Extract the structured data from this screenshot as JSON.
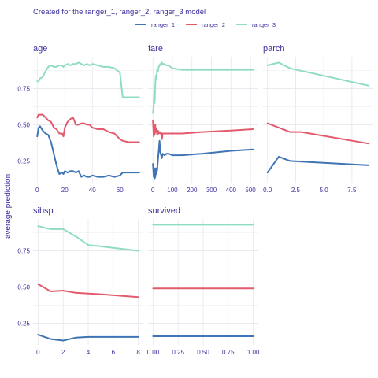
{
  "chart_data": {
    "type": "line",
    "title": "Created for the ranger_1, ranger_2, ranger_3 model",
    "ylabel": "average prediction",
    "legend_position": "top",
    "series_meta": [
      {
        "name": "ranger_1",
        "color": "#3f74b5"
      },
      {
        "name": "ranger_2",
        "color": "#e35a6c"
      },
      {
        "name": "ranger_3",
        "color": "#8fdcc3"
      }
    ],
    "ylim": [
      0.1,
      0.97
    ],
    "yticks": [
      0.25,
      0.5,
      0.75
    ],
    "ytick_labels": [
      "0.25",
      "0.50",
      "0.75"
    ],
    "panels": [
      {
        "name": "age",
        "xlim": [
          -3,
          77
        ],
        "xticks": [
          0,
          20,
          40,
          60
        ],
        "xtick_labels": [
          "0",
          "20",
          "40",
          "60"
        ],
        "series": [
          {
            "name": "ranger_1",
            "x": [
              0,
              1,
              2,
              4,
              6,
              8,
              10,
              12,
              14,
              16,
              18,
              19,
              20,
              22,
              24,
              26,
              28,
              30,
              32,
              34,
              36,
              38,
              40,
              44,
              48,
              52,
              56,
              60,
              62,
              66,
              70,
              74
            ],
            "y": [
              0.42,
              0.48,
              0.49,
              0.46,
              0.44,
              0.43,
              0.38,
              0.3,
              0.22,
              0.16,
              0.17,
              0.16,
              0.18,
              0.17,
              0.18,
              0.18,
              0.17,
              0.18,
              0.14,
              0.15,
              0.14,
              0.14,
              0.15,
              0.14,
              0.14,
              0.15,
              0.14,
              0.15,
              0.17,
              0.17,
              0.17,
              0.17
            ]
          },
          {
            "name": "ranger_2",
            "x": [
              0,
              1,
              2,
              4,
              6,
              8,
              10,
              12,
              14,
              16,
              18,
              19,
              20,
              22,
              24,
              26,
              28,
              30,
              32,
              34,
              36,
              38,
              40,
              44,
              48,
              52,
              56,
              60,
              62,
              66,
              70,
              74
            ],
            "y": [
              0.55,
              0.57,
              0.57,
              0.57,
              0.55,
              0.53,
              0.52,
              0.48,
              0.47,
              0.44,
              0.44,
              0.42,
              0.48,
              0.52,
              0.54,
              0.55,
              0.5,
              0.5,
              0.51,
              0.51,
              0.5,
              0.5,
              0.48,
              0.47,
              0.47,
              0.45,
              0.44,
              0.4,
              0.39,
              0.38,
              0.38,
              0.38
            ]
          },
          {
            "name": "ranger_3",
            "x": [
              0,
              1,
              2,
              4,
              6,
              8,
              10,
              12,
              14,
              16,
              18,
              19,
              20,
              22,
              24,
              26,
              28,
              30,
              32,
              34,
              36,
              38,
              40,
              44,
              48,
              52,
              56,
              60,
              62,
              66,
              70,
              74
            ],
            "y": [
              0.8,
              0.8,
              0.82,
              0.83,
              0.87,
              0.9,
              0.91,
              0.9,
              0.9,
              0.91,
              0.91,
              0.9,
              0.91,
              0.92,
              0.91,
              0.92,
              0.92,
              0.93,
              0.92,
              0.91,
              0.92,
              0.91,
              0.92,
              0.91,
              0.9,
              0.9,
              0.89,
              0.86,
              0.69,
              0.69,
              0.69,
              0.69
            ]
          }
        ]
      },
      {
        "name": "fare",
        "xlim": [
          -25,
          540
        ],
        "xticks": [
          0,
          100,
          200,
          300,
          400,
          500
        ],
        "xtick_labels": [
          "0",
          "100",
          "200",
          "300",
          "400",
          "500"
        ],
        "series": [
          {
            "name": "ranger_1",
            "x": [
              0,
              4,
              7,
              9,
              12,
              15,
              18,
              22,
              26,
              30,
              34,
              38,
              42,
              46,
              50,
              60,
              70,
              80,
              100,
              150,
              250,
              400,
              512
            ],
            "y": [
              0.23,
              0.14,
              0.2,
              0.13,
              0.14,
              0.2,
              0.16,
              0.19,
              0.26,
              0.32,
              0.39,
              0.31,
              0.29,
              0.27,
              0.3,
              0.29,
              0.3,
              0.3,
              0.29,
              0.29,
              0.3,
              0.32,
              0.33
            ]
          },
          {
            "name": "ranger_2",
            "x": [
              0,
              4,
              7,
              9,
              12,
              15,
              18,
              22,
              26,
              30,
              34,
              38,
              42,
              46,
              50,
              60,
              70,
              80,
              100,
              150,
              250,
              400,
              512
            ],
            "y": [
              0.53,
              0.42,
              0.49,
              0.43,
              0.5,
              0.45,
              0.47,
              0.43,
              0.46,
              0.44,
              0.45,
              0.44,
              0.45,
              0.4,
              0.44,
              0.44,
              0.44,
              0.44,
              0.44,
              0.44,
              0.45,
              0.46,
              0.47
            ]
          },
          {
            "name": "ranger_3",
            "x": [
              0,
              4,
              7,
              9,
              12,
              15,
              18,
              22,
              26,
              30,
              34,
              38,
              42,
              46,
              50,
              60,
              70,
              80,
              100,
              150,
              250,
              400,
              512
            ],
            "y": [
              0.58,
              0.63,
              0.73,
              0.65,
              0.78,
              0.84,
              0.81,
              0.88,
              0.87,
              0.9,
              0.91,
              0.92,
              0.91,
              0.93,
              0.92,
              0.92,
              0.91,
              0.91,
              0.89,
              0.88,
              0.88,
              0.88,
              0.88
            ]
          }
        ]
      },
      {
        "name": "parch",
        "xlim": [
          -0.4,
          9.4
        ],
        "xticks": [
          0,
          2.5,
          5,
          7.5
        ],
        "xtick_labels": [
          "0.0",
          "2.5",
          "5.0",
          "7.5"
        ],
        "series": [
          {
            "name": "ranger_1",
            "x": [
              0,
              1,
              2,
              9
            ],
            "y": [
              0.17,
              0.28,
              0.25,
              0.22
            ]
          },
          {
            "name": "ranger_2",
            "x": [
              0,
              1,
              2,
              3,
              9
            ],
            "y": [
              0.51,
              0.48,
              0.45,
              0.45,
              0.37
            ]
          },
          {
            "name": "ranger_3",
            "x": [
              0,
              1,
              2,
              9
            ],
            "y": [
              0.91,
              0.93,
              0.89,
              0.77
            ]
          }
        ]
      },
      {
        "name": "sibsp",
        "xlim": [
          -0.4,
          8.4
        ],
        "xticks": [
          0,
          2,
          4,
          6,
          8
        ],
        "xtick_labels": [
          "0",
          "2",
          "4",
          "6",
          "8"
        ],
        "series": [
          {
            "name": "ranger_1",
            "x": [
              0,
              1,
              2,
              3,
              4,
              5,
              8
            ],
            "y": [
              0.17,
              0.14,
              0.13,
              0.15,
              0.155,
              0.155,
              0.155
            ]
          },
          {
            "name": "ranger_2",
            "x": [
              0,
              1,
              2,
              3,
              4,
              5,
              8
            ],
            "y": [
              0.52,
              0.47,
              0.475,
              0.46,
              0.455,
              0.45,
              0.43
            ]
          },
          {
            "name": "ranger_3",
            "x": [
              0,
              1,
              2,
              3,
              4,
              5,
              8
            ],
            "y": [
              0.92,
              0.9,
              0.9,
              0.85,
              0.79,
              0.78,
              0.75
            ]
          }
        ]
      },
      {
        "name": "survived",
        "xlim": [
          -0.05,
          1.05
        ],
        "xticks": [
          0,
          0.25,
          0.5,
          0.75,
          1
        ],
        "xtick_labels": [
          "0.00",
          "0.25",
          "0.50",
          "0.75",
          "1.00"
        ],
        "series": [
          {
            "name": "ranger_1",
            "x": [
              0,
              1
            ],
            "y": [
              0.16,
              0.16
            ]
          },
          {
            "name": "ranger_2",
            "x": [
              0,
              1
            ],
            "y": [
              0.49,
              0.49
            ]
          },
          {
            "name": "ranger_3",
            "x": [
              0,
              1
            ],
            "y": [
              0.93,
              0.93
            ]
          }
        ]
      }
    ]
  }
}
